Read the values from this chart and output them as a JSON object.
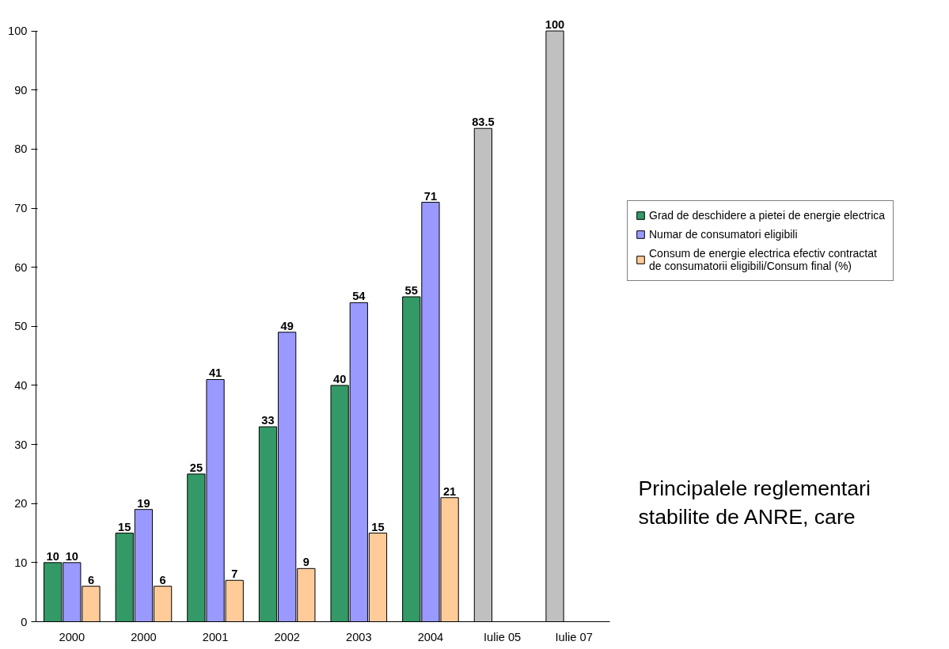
{
  "chart_data": {
    "type": "bar",
    "categories": [
      "2000",
      "2000",
      "2001",
      "2002",
      "2003",
      "2004",
      "Iulie 05",
      "Iulie 07"
    ],
    "series": [
      {
        "name": "Grad de deschidere a pietei de energie electrica",
        "color": "#339966",
        "colors": [
          "#339966",
          "#339966",
          "#339966",
          "#339966",
          "#339966",
          "#339966",
          "#c0c0c0",
          "#c0c0c0"
        ],
        "values": [
          10,
          15,
          25,
          33,
          40,
          55,
          83.5,
          100
        ]
      },
      {
        "name": "Numar de consumatori eligibili",
        "color": "#9999ff",
        "values": [
          10,
          19,
          41,
          49,
          54,
          71,
          null,
          null
        ]
      },
      {
        "name": "Consum de energie electrica efectiv contractat\nde consumatorii eligibili/Consum final (%)",
        "color": "#ffcc99",
        "values": [
          6,
          6,
          7,
          9,
          15,
          21,
          null,
          null
        ]
      }
    ],
    "ylim": [
      0,
      100
    ],
    "yticks": [
      0,
      10,
      20,
      30,
      40,
      50,
      60,
      70,
      80,
      90,
      100
    ],
    "grid": false,
    "legend": "right",
    "data_labels": true,
    "annotations": [
      "Principalele reglementari\nstabilite de ANRE, care"
    ]
  }
}
